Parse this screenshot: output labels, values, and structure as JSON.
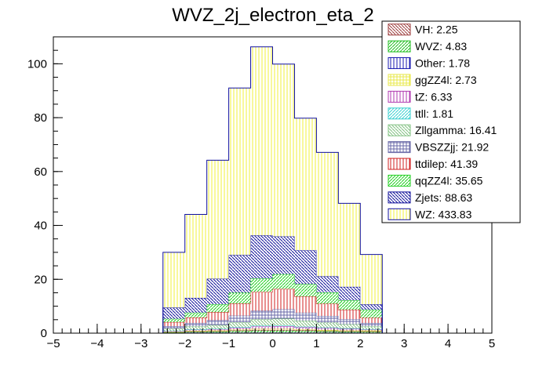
{
  "chart_data": {
    "type": "bar",
    "title": "WVZ_2j_electron_eta_2",
    "xlabel": "",
    "ylabel": "",
    "xlim": [
      -5,
      5
    ],
    "ylim": [
      0,
      110
    ],
    "x_ticks": [
      -5,
      -4,
      -3,
      -2,
      -1,
      0,
      1,
      2,
      3,
      4,
      5
    ],
    "y_ticks": [
      0,
      20,
      40,
      60,
      80,
      100
    ],
    "bin_edges": [
      -2.5,
      -2.0,
      -1.5,
      -1.0,
      -0.5,
      0.0,
      0.5,
      1.0,
      1.5,
      2.0,
      2.5
    ],
    "stacked": true,
    "legend_position": "top-right",
    "series": [
      {
        "name": "Other",
        "color": "#1a1ab0",
        "legend": "Other: 1.78",
        "values": [
          0.1,
          0.2,
          0.2,
          0.2,
          0.2,
          0.2,
          0.2,
          0.2,
          0.2,
          0.1
        ]
      },
      {
        "name": "WVZ",
        "color": "#1fbf1f",
        "legend": "WVZ: 4.83",
        "values": [
          0.2,
          0.3,
          0.4,
          0.6,
          0.7,
          0.7,
          0.6,
          0.5,
          0.4,
          0.4
        ]
      },
      {
        "name": "VH",
        "color": "#9b3a3a",
        "legend": "VH: 2.25",
        "values": [
          0.1,
          0.2,
          0.2,
          0.2,
          0.3,
          0.3,
          0.3,
          0.2,
          0.2,
          0.2
        ]
      },
      {
        "name": "ggZZ4l",
        "color": "#e8e84a",
        "legend": "ggZZ4l: 2.73",
        "values": [
          0.1,
          0.2,
          0.2,
          0.3,
          0.4,
          0.4,
          0.3,
          0.3,
          0.2,
          0.3
        ]
      },
      {
        "name": "tZ",
        "color": "#b03ab0",
        "legend": "tZ: 6.33",
        "values": [
          0.3,
          0.4,
          0.5,
          0.7,
          0.9,
          1.0,
          0.8,
          0.7,
          0.6,
          0.4
        ]
      },
      {
        "name": "ttll",
        "color": "#3ad0d0",
        "legend": "ttll: 1.81",
        "values": [
          0.1,
          0.1,
          0.1,
          0.2,
          0.3,
          0.3,
          0.2,
          0.2,
          0.2,
          0.1
        ]
      },
      {
        "name": "Zllgamma",
        "color": "#7fc07f",
        "legend": "Zllgamma: 16.41",
        "values": [
          0.8,
          1.1,
          1.4,
          1.8,
          2.3,
          2.5,
          2.2,
          1.8,
          1.5,
          1.0
        ]
      },
      {
        "name": "VBSZZjj",
        "color": "#6a6aa8",
        "legend": "VBSZZjj: 21.92",
        "values": [
          0.9,
          1.3,
          1.8,
          2.5,
          3.2,
          3.5,
          3.0,
          2.5,
          1.9,
          1.3
        ]
      },
      {
        "name": "ttdilep",
        "color": "#d02020",
        "legend": "ttdilep: 41.39",
        "values": [
          1.5,
          2.0,
          3.0,
          4.5,
          7.0,
          7.5,
          6.0,
          4.5,
          3.5,
          1.9
        ]
      },
      {
        "name": "qqZZ4l",
        "color": "#20d020",
        "legend": "qqZZ4l: 35.65",
        "values": [
          1.2,
          1.8,
          2.9,
          4.0,
          5.0,
          5.5,
          4.6,
          4.2,
          3.5,
          3.0
        ]
      },
      {
        "name": "Zjets",
        "color": "#10109a",
        "legend": "Zjets: 88.63",
        "values": [
          4.2,
          5.5,
          9.5,
          14.0,
          16.0,
          14.0,
          12.6,
          6.0,
          5.0,
          2.0
        ]
      },
      {
        "name": "WZ",
        "color": "#f0f03a",
        "legend": "WZ: 433.83",
        "values": [
          20.5,
          31.0,
          44.0,
          62.0,
          70.0,
          64.0,
          49.0,
          46.0,
          31.0,
          18.5
        ]
      }
    ],
    "legend_order": [
      "VH",
      "WVZ",
      "Other",
      "ggZZ4l",
      "tZ",
      "ttll",
      "Zllgamma",
      "VBSZZjj",
      "ttdilep",
      "qqZZ4l",
      "Zjets",
      "WZ"
    ]
  }
}
